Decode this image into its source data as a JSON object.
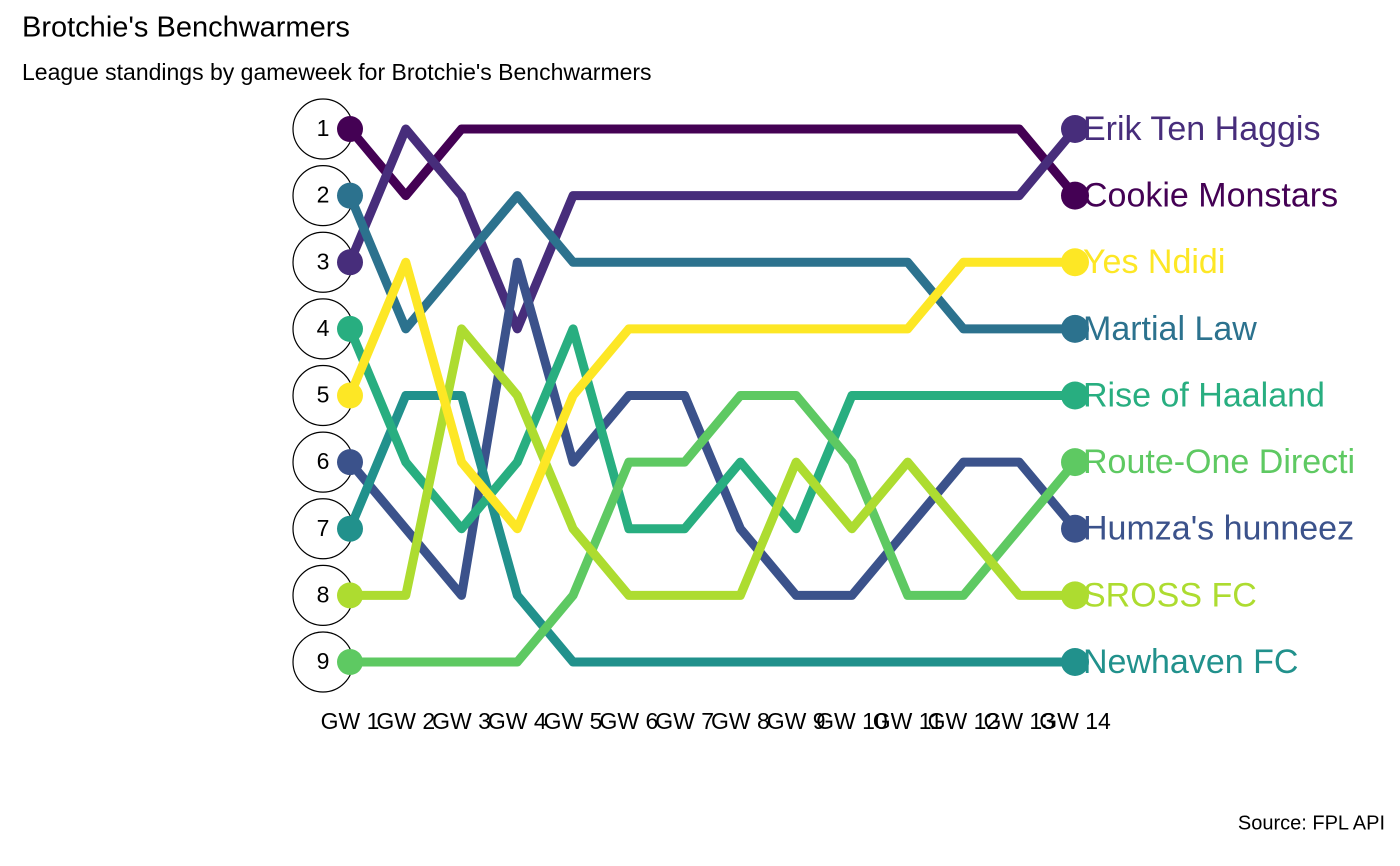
{
  "chart_data": {
    "type": "bump",
    "title": "Brotchie's Benchwarmers",
    "subtitle": "League standings by gameweek for Brotchie's Benchwarmers",
    "caption": "Source: FPL API",
    "categories": [
      "GW 1",
      "GW 2",
      "GW 3",
      "GW 4",
      "GW 5",
      "GW 6",
      "GW 7",
      "GW 8",
      "GW 9",
      "GW 10",
      "GW 11",
      "GW 12",
      "GW 13",
      "GW 14"
    ],
    "ylim": [
      9,
      1
    ],
    "yticks": [
      1,
      2,
      3,
      4,
      5,
      6,
      7,
      8,
      9
    ],
    "series": [
      {
        "name": "Cookie Monstars",
        "color": "#440154",
        "values": [
          1,
          2,
          1,
          1,
          1,
          1,
          1,
          1,
          1,
          1,
          1,
          1,
          1,
          2
        ]
      },
      {
        "name": "Erik Ten Haggis",
        "color": "#472d7b",
        "values": [
          3,
          1,
          2,
          4,
          2,
          2,
          2,
          2,
          2,
          2,
          2,
          2,
          2,
          1
        ]
      },
      {
        "name": "Humza's hunneez",
        "color": "#3b528b",
        "values": [
          6,
          7,
          8,
          3,
          6,
          5,
          5,
          7,
          8,
          8,
          7,
          6,
          6,
          7
        ]
      },
      {
        "name": "Martial Law",
        "color": "#2c728e",
        "values": [
          2,
          4,
          3,
          2,
          3,
          3,
          3,
          3,
          3,
          3,
          3,
          4,
          4,
          4
        ]
      },
      {
        "name": "Newhaven FC",
        "color": "#21918c",
        "values": [
          7,
          5,
          5,
          8,
          9,
          9,
          9,
          9,
          9,
          9,
          9,
          9,
          9,
          9
        ]
      },
      {
        "name": "Rise of Haaland",
        "color": "#28ae80",
        "values": [
          4,
          6,
          7,
          6,
          4,
          7,
          7,
          6,
          7,
          5,
          5,
          5,
          5,
          5
        ]
      },
      {
        "name": "Route-One Directi",
        "color": "#5ec962",
        "values": [
          9,
          9,
          9,
          9,
          8,
          6,
          6,
          5,
          5,
          6,
          8,
          8,
          7,
          6
        ]
      },
      {
        "name": "SROSS FC",
        "color": "#addc30",
        "values": [
          8,
          8,
          4,
          5,
          7,
          8,
          8,
          8,
          6,
          7,
          6,
          7,
          8,
          8
        ]
      },
      {
        "name": "Yes Ndidi",
        "color": "#fde725",
        "values": [
          5,
          3,
          6,
          7,
          5,
          4,
          4,
          4,
          4,
          4,
          4,
          3,
          3,
          3
        ]
      }
    ]
  }
}
